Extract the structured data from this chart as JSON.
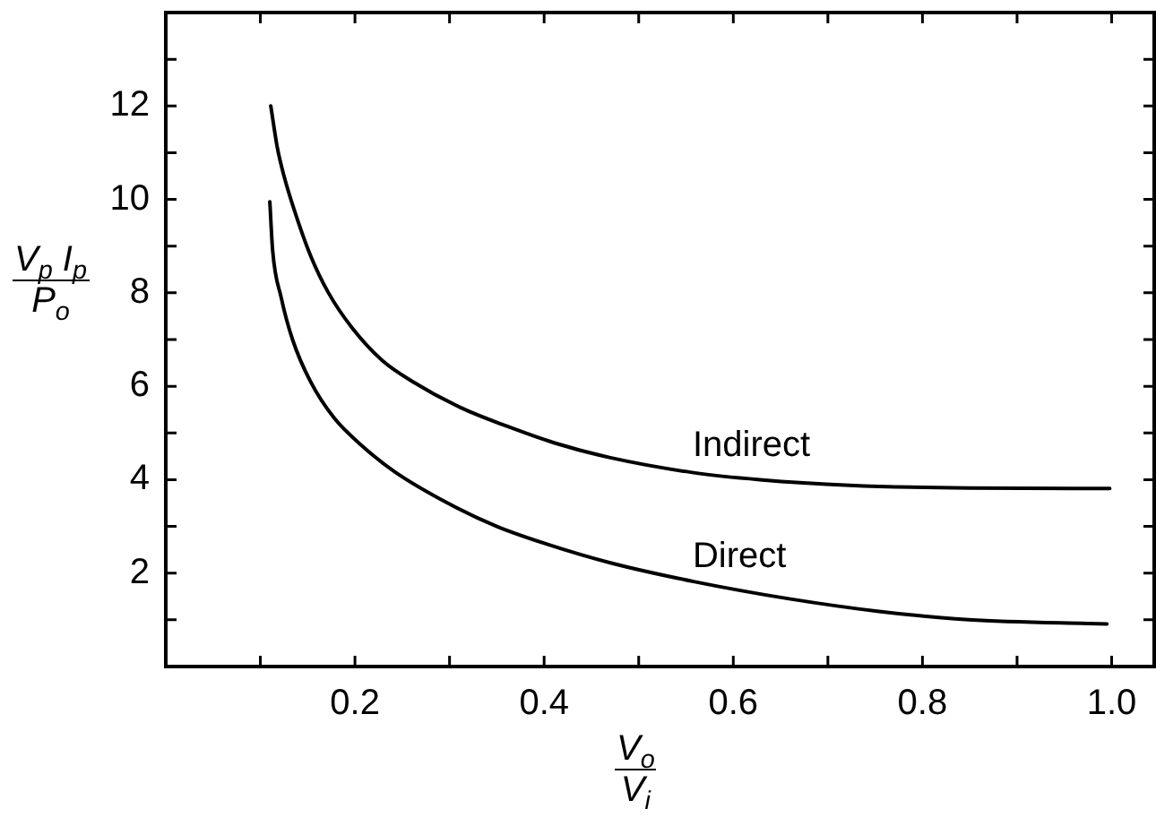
{
  "chart_data": {
    "type": "line",
    "xlabel": "V$_{o}$\nV$_{i}$",
    "ylabel": "V$_{p}$ I$_{p}$\nP$_{o}$",
    "xlim": [
      0,
      1.045
    ],
    "ylim": [
      0,
      14
    ],
    "xticks": [
      {
        "value": 0.1,
        "label": null
      },
      0.2,
      {
        "value": 0.3,
        "label": null
      },
      0.4,
      {
        "value": 0.5,
        "label": null
      },
      0.6,
      {
        "value": 0.7,
        "label": null
      },
      0.8,
      {
        "value": 0.9,
        "label": null
      },
      {
        "value": 1,
        "label": "1.0"
      }
    ],
    "yticks": [
      {
        "value": 1,
        "label": null
      },
      2,
      {
        "value": 3,
        "label": null
      },
      4,
      {
        "value": 5,
        "label": null
      },
      6,
      {
        "value": 7,
        "label": null
      },
      8,
      {
        "value": 9,
        "label": null
      },
      10,
      {
        "value": 11,
        "label": null
      },
      12,
      {
        "value": 13,
        "label": null
      }
    ],
    "grid": false,
    "legend": false,
    "marker": "none",
    "line_style": "solid",
    "series": [
      {
        "name": "Indirect",
        "color": "#000000",
        "x": [
          0.111,
          0.118,
          0.125,
          0.137,
          0.153,
          0.172,
          0.197,
          0.229,
          0.261,
          0.311,
          0.36,
          0.412,
          0.47,
          0.558,
          0.628,
          0.723,
          0.849,
          0.998
        ],
        "values": [
          12.0,
          11.1,
          10.5,
          9.7,
          8.8,
          8.0,
          7.25,
          6.55,
          6.1,
          5.55,
          5.15,
          4.78,
          4.47,
          4.15,
          4.0,
          3.88,
          3.82,
          3.81
        ]
      },
      {
        "name": "Direct",
        "color": "#000000",
        "x": [
          0.11,
          0.113,
          0.122,
          0.134,
          0.153,
          0.178,
          0.21,
          0.242,
          0.298,
          0.35,
          0.403,
          0.47,
          0.558,
          0.659,
          0.754,
          0.849,
          0.995
        ],
        "values": [
          9.95,
          8.9,
          7.9,
          7.0,
          6.1,
          5.32,
          4.68,
          4.17,
          3.5,
          3.0,
          2.62,
          2.22,
          1.82,
          1.45,
          1.18,
          1.0,
          0.91
        ]
      }
    ]
  }
}
